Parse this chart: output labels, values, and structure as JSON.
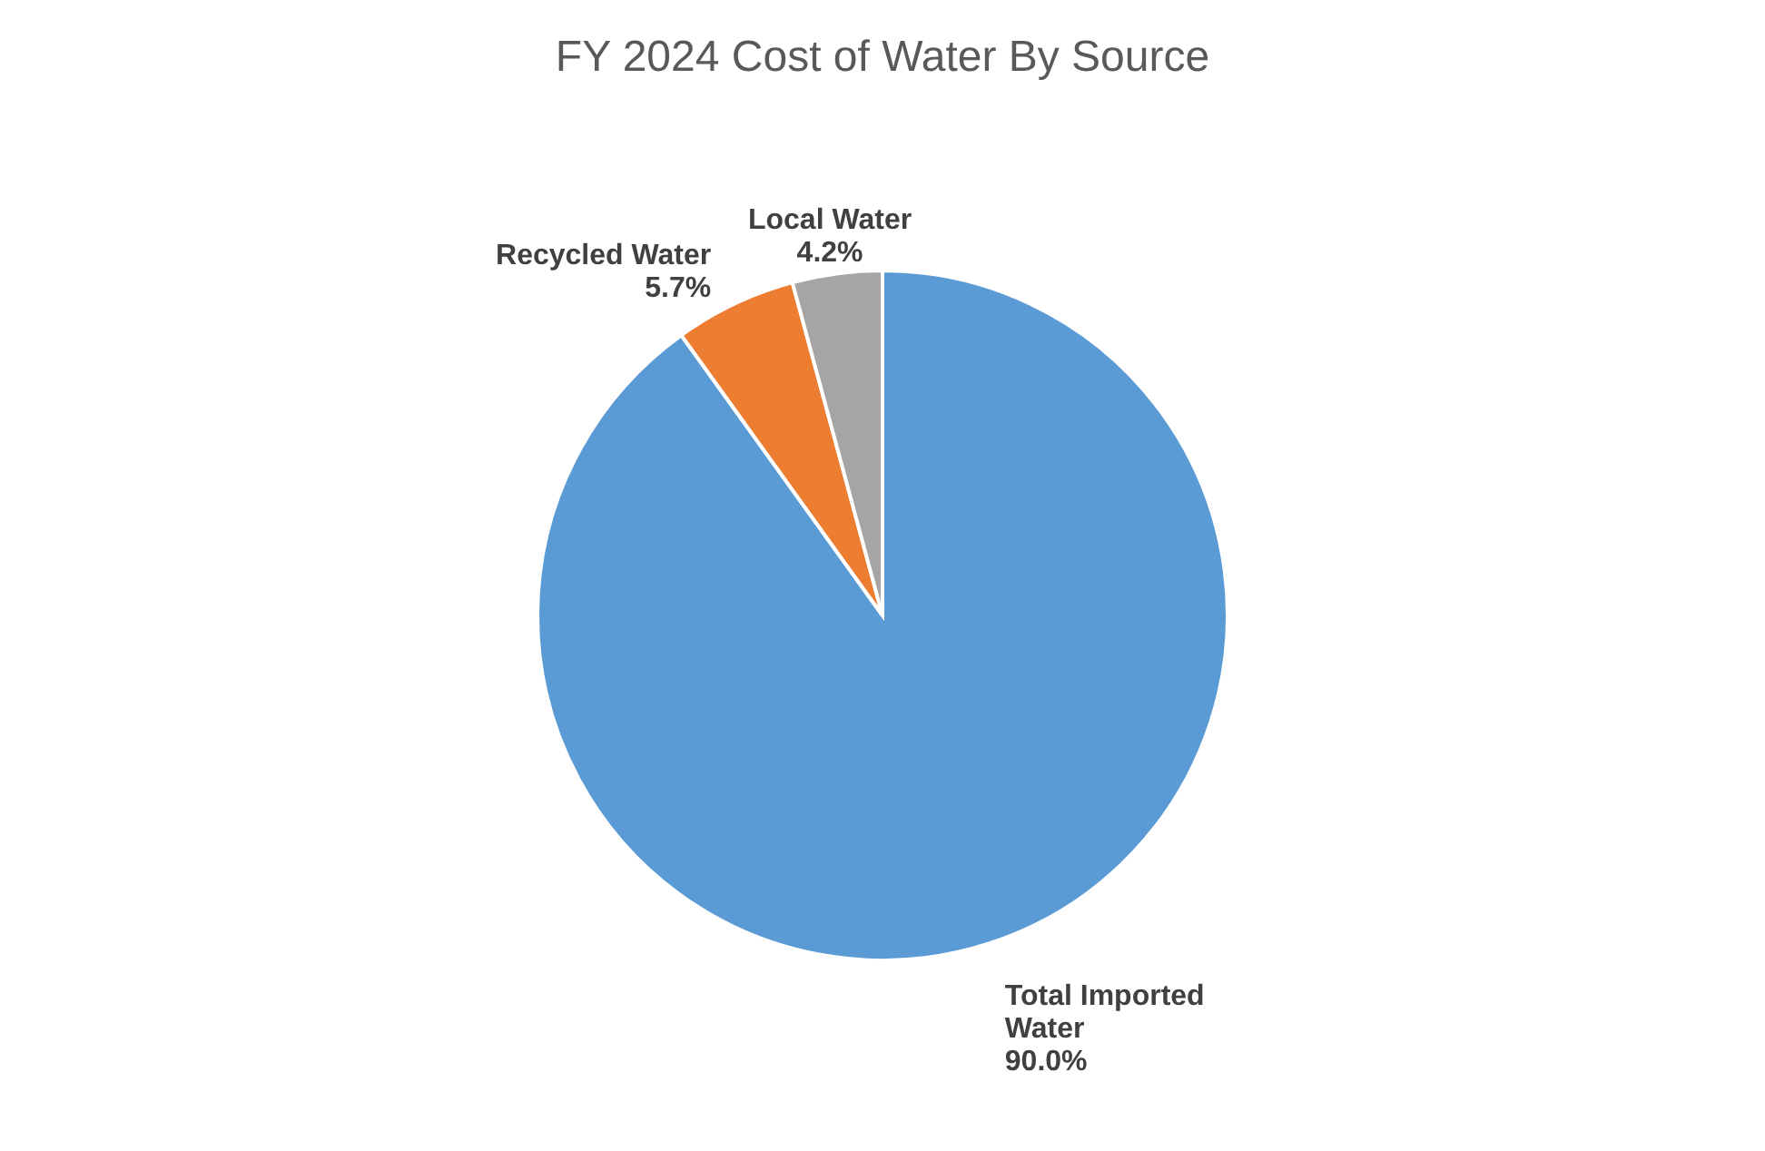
{
  "chart_data": {
    "type": "pie",
    "title": "FY 2024 Cost of Water By Source",
    "categories": [
      "Total Imported Water",
      "Recycled Water",
      "Local Water"
    ],
    "values": [
      90.0,
      5.7,
      4.2
    ],
    "colors": [
      "#5b9bd5",
      "#ed7d31",
      "#a5a5a5"
    ],
    "value_labels": [
      "90.0%",
      "5.7%",
      "4.2%"
    ]
  }
}
